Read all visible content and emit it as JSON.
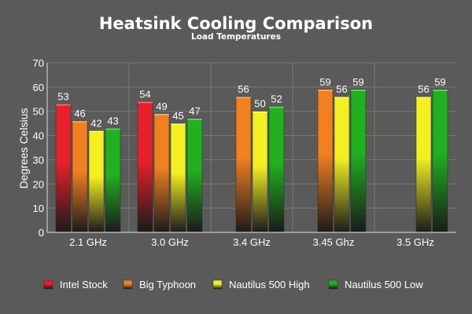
{
  "chart_data": {
    "type": "bar",
    "title": "Heatsink Cooling Comparison",
    "subtitle": "Load Temperatures",
    "ylabel": "Degrees Celsius",
    "xlabel": "",
    "ylim": [
      0,
      70
    ],
    "yticks": [
      0,
      10,
      20,
      30,
      40,
      50,
      60,
      70
    ],
    "grid": true,
    "legend_position": "bottom",
    "categories": [
      "2.1 GHz",
      "3.0 GHz",
      "3.4 GHz",
      "3.45 Ghz",
      "3.5 GHz"
    ],
    "series": [
      {
        "name": "Intel Stock",
        "color": "#e8202a",
        "values": [
          53,
          54,
          null,
          null,
          null
        ]
      },
      {
        "name": "Big Typhoon",
        "color": "#f08020",
        "values": [
          46,
          49,
          56,
          59,
          null
        ]
      },
      {
        "name": "Nautilus 500 High",
        "color": "#f4f020",
        "values": [
          42,
          45,
          50,
          56,
          56
        ]
      },
      {
        "name": "Nautilus 500 Low",
        "color": "#20b020",
        "values": [
          43,
          47,
          52,
          59,
          59
        ]
      }
    ]
  },
  "colors": {
    "background": "#5a5a5a",
    "grid": "#7a7a7a",
    "axis": "#c8c8c8",
    "text": "#ffffff"
  }
}
